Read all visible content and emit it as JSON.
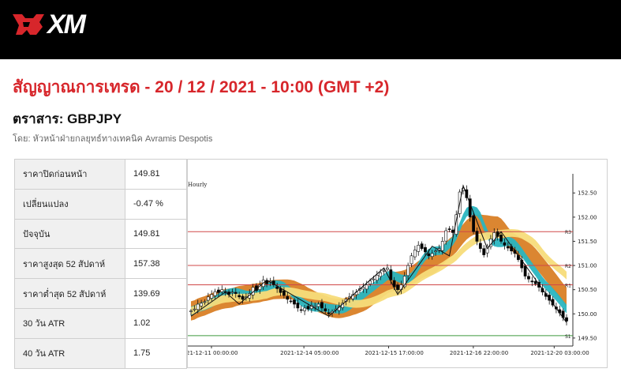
{
  "brand": {
    "logo_text": "XM"
  },
  "page": {
    "title": "สัญญาณการเทรด - 20 / 12 / 2021 - 10:00 (GMT +2)",
    "instrument": "ตราสาร: GBPJPY",
    "author": "โดย: หัวหน้าฝ่ายกลยุทธ์ทางเทคนิค Avramis Despotis"
  },
  "stats": [
    {
      "label": "ราคาปิดก่อนหน้า",
      "value": "149.81"
    },
    {
      "label": "เปลี่ยนแปลง",
      "value": "-0.47 %"
    },
    {
      "label": "ปัจจุบัน",
      "value": "149.81"
    },
    {
      "label": "ราคาสูงสุด 52 สัปดาห์",
      "value": "157.38"
    },
    {
      "label": "ราคาต่ำสุด 52 สัปดาห์",
      "value": "139.69"
    },
    {
      "label": "30 วัน ATR",
      "value": "1.02"
    },
    {
      "label": "40 วัน ATR",
      "value": "1.75"
    }
  ],
  "chart_data": {
    "type": "candlestick",
    "timeframe_label": "Hourly",
    "x_tick_labels": [
      "21-12-11 00:00:00",
      "2021-12-14 05:00:00",
      "2021-12-15 17:00:00",
      "2021-12-16 22:00:00",
      "2021-12-20 03:00:00"
    ],
    "y_tick_labels": [
      "149.50",
      "150.00",
      "150.50",
      "151.00",
      "151.50",
      "152.00",
      "152.50"
    ],
    "ylim": [
      149.4,
      152.7
    ],
    "levels": [
      {
        "name": "R3",
        "value": 151.7,
        "color": "#d04848"
      },
      {
        "name": "R2",
        "value": 151.0,
        "color": "#d04848"
      },
      {
        "name": "R1",
        "value": 150.6,
        "color": "#d04848"
      },
      {
        "name": "S1",
        "value": 149.55,
        "color": "#3f9a3f"
      }
    ],
    "close_path": [
      150.06,
      150.1,
      150.2,
      150.22,
      150.25,
      150.35,
      150.4,
      150.46,
      150.44,
      150.5,
      150.46,
      150.4,
      150.45,
      150.42,
      150.35,
      150.3,
      150.35,
      150.42,
      150.55,
      150.48,
      150.6,
      150.7,
      150.62,
      150.68,
      150.6,
      150.52,
      150.44,
      150.38,
      150.3,
      150.26,
      150.2,
      150.12,
      150.08,
      150.12,
      150.1,
      150.18,
      150.15,
      150.2,
      150.12,
      150.06,
      150.0,
      150.05,
      150.1,
      150.15,
      150.22,
      150.3,
      150.35,
      150.4,
      150.45,
      150.52,
      150.55,
      150.6,
      150.68,
      150.72,
      150.8,
      150.85,
      150.9,
      150.95,
      150.7,
      150.56,
      150.5,
      150.6,
      150.78,
      151.0,
      151.2,
      151.32,
      151.42,
      151.35,
      151.28,
      151.2,
      151.25,
      151.3,
      151.35,
      151.5,
      151.72,
      151.75,
      151.68,
      152.05,
      152.52,
      152.6,
      152.4,
      152.0,
      151.7,
      151.5,
      151.35,
      151.22,
      151.4,
      151.55,
      151.68,
      151.6,
      151.5,
      151.42,
      151.36,
      151.3,
      151.25,
      151.12,
      150.95,
      150.78,
      150.72,
      150.66,
      150.62,
      150.55,
      150.45,
      150.36,
      150.28,
      150.18,
      150.1,
      150.02,
      149.92,
      149.85
    ],
    "zigzag": [
      {
        "i": 0,
        "y": 149.95
      },
      {
        "i": 10,
        "y": 150.45
      },
      {
        "i": 14,
        "y": 150.2
      },
      {
        "i": 22,
        "y": 150.7
      },
      {
        "i": 40,
        "y": 149.95
      },
      {
        "i": 56,
        "y": 150.95
      },
      {
        "i": 60,
        "y": 150.4
      },
      {
        "i": 70,
        "y": 151.4
      },
      {
        "i": 75,
        "y": 151.2
      },
      {
        "i": 79,
        "y": 152.65
      },
      {
        "i": 86,
        "y": 151.35
      },
      {
        "i": 90,
        "y": 151.7
      },
      {
        "i": 109,
        "y": 149.82
      }
    ],
    "colors": {
      "orange_band": "#d98026",
      "teal_band": "#2ab5c0",
      "yellow_band": "#f7dc7a",
      "up_candle": "#ffffff",
      "down_candle": "#000000"
    }
  }
}
